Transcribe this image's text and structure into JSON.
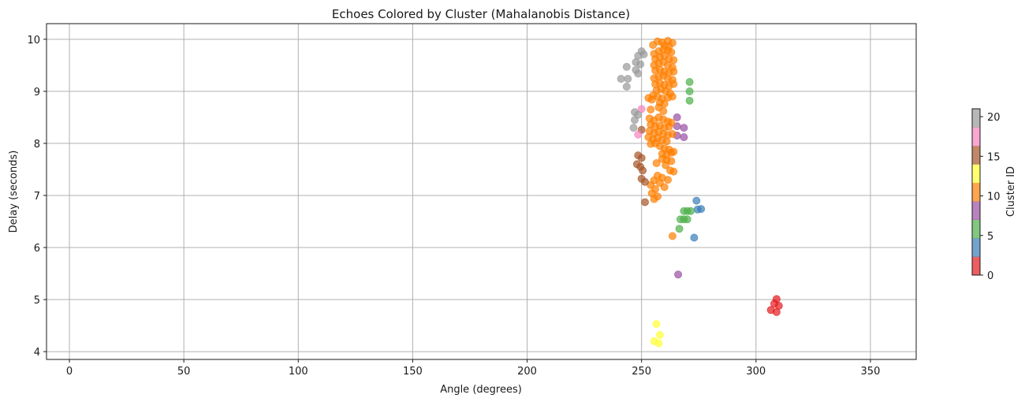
{
  "chart_data": {
    "type": "scatter",
    "title": "Echoes Colored by Cluster (Mahalanobis Distance)",
    "xlabel": "Angle (degrees)",
    "ylabel": "Delay (seconds)",
    "xlim": [
      -10,
      370
    ],
    "ylim": [
      3.85,
      10.3
    ],
    "xticks": [
      0,
      50,
      100,
      150,
      200,
      250,
      300,
      350
    ],
    "yticks": [
      4,
      5,
      6,
      7,
      8,
      9,
      10
    ],
    "grid": true,
    "marker_alpha": 0.7,
    "colorbar": {
      "label": "Cluster ID",
      "min": 0,
      "max": 21,
      "ticks": [
        0,
        5,
        10,
        15,
        20
      ],
      "colormap": "Set1",
      "colors": [
        "#e41a1c",
        "#377eb8",
        "#4daf4a",
        "#984ea3",
        "#ff7f00",
        "#ffff33",
        "#a65628",
        "#f781bf",
        "#999999"
      ]
    },
    "series": [
      {
        "cluster": 0,
        "color": "#e41a1c",
        "points": [
          [
            309,
            5.01
          ],
          [
            308,
            4.92
          ],
          [
            310,
            4.88
          ],
          [
            306.5,
            4.8
          ],
          [
            309,
            4.76
          ]
        ]
      },
      {
        "cluster": 3,
        "color": "#377eb8",
        "points": [
          [
            274,
            6.9
          ],
          [
            274.5,
            6.73
          ],
          [
            276,
            6.74
          ],
          [
            273,
            6.19
          ]
        ]
      },
      {
        "cluster": 5,
        "color": "#4daf4a",
        "points": [
          [
            271,
            9.18
          ],
          [
            271,
            9.0
          ],
          [
            271,
            8.82
          ],
          [
            268.5,
            6.7
          ],
          [
            270,
            6.7
          ],
          [
            271.5,
            6.7
          ],
          [
            267,
            6.54
          ],
          [
            268.5,
            6.54
          ],
          [
            270,
            6.54
          ],
          [
            266.5,
            6.36
          ]
        ]
      },
      {
        "cluster": 8,
        "color": "#984ea3",
        "points": [
          [
            265.5,
            8.5
          ],
          [
            268.5,
            8.3
          ],
          [
            265.5,
            8.33
          ],
          [
            265.5,
            8.15
          ],
          [
            268.5,
            8.12
          ],
          [
            266,
            5.48
          ]
        ]
      },
      {
        "cluster": 11,
        "color": "#ff7f00",
        "points": [
          [
            257,
            9.96
          ],
          [
            259,
            9.94
          ],
          [
            261.5,
            9.97
          ],
          [
            263.5,
            9.93
          ],
          [
            255,
            9.89
          ],
          [
            260,
            9.88
          ],
          [
            262,
            9.86
          ],
          [
            255.5,
            9.72
          ],
          [
            257.5,
            9.77
          ],
          [
            259.5,
            9.8
          ],
          [
            261.5,
            9.78
          ],
          [
            263,
            9.75
          ],
          [
            256,
            9.62
          ],
          [
            258,
            9.66
          ],
          [
            260,
            9.68
          ],
          [
            262,
            9.62
          ],
          [
            264,
            9.6
          ],
          [
            255.5,
            9.5
          ],
          [
            257.5,
            9.54
          ],
          [
            259.5,
            9.56
          ],
          [
            261.5,
            9.5
          ],
          [
            263.5,
            9.46
          ],
          [
            256,
            9.4
          ],
          [
            258,
            9.42
          ],
          [
            260,
            9.38
          ],
          [
            262,
            9.36
          ],
          [
            264,
            9.38
          ],
          [
            255.5,
            9.25
          ],
          [
            257.5,
            9.28
          ],
          [
            259.5,
            9.3
          ],
          [
            261.5,
            9.24
          ],
          [
            263.5,
            9.22
          ],
          [
            256,
            9.14
          ],
          [
            258,
            9.16
          ],
          [
            260,
            9.12
          ],
          [
            262,
            9.1
          ],
          [
            264,
            9.14
          ],
          [
            256.5,
            9.02
          ],
          [
            258.5,
            9.04
          ],
          [
            260.5,
            9.0
          ],
          [
            262.5,
            8.96
          ],
          [
            255,
            8.92
          ],
          [
            257,
            8.9
          ],
          [
            259,
            8.86
          ],
          [
            261.5,
            8.88
          ],
          [
            263.5,
            8.9
          ],
          [
            253,
            8.87
          ],
          [
            254.5,
            8.84
          ],
          [
            258,
            8.78
          ],
          [
            260,
            8.76
          ],
          [
            254,
            8.65
          ],
          [
            257.5,
            8.69
          ],
          [
            259.5,
            8.62
          ],
          [
            253.5,
            8.48
          ],
          [
            255.5,
            8.44
          ],
          [
            257.5,
            8.5
          ],
          [
            259.5,
            8.46
          ],
          [
            261.5,
            8.42
          ],
          [
            263,
            8.4
          ],
          [
            254,
            8.36
          ],
          [
            256,
            8.32
          ],
          [
            258,
            8.34
          ],
          [
            260,
            8.3
          ],
          [
            262,
            8.32
          ],
          [
            253.5,
            8.24
          ],
          [
            255.5,
            8.2
          ],
          [
            257.5,
            8.22
          ],
          [
            259.5,
            8.18
          ],
          [
            261.5,
            8.16
          ],
          [
            263.5,
            8.18
          ],
          [
            253,
            8.12
          ],
          [
            255,
            8.08
          ],
          [
            257,
            8.1
          ],
          [
            259,
            8.06
          ],
          [
            261,
            8.04
          ],
          [
            254,
            7.99
          ],
          [
            256,
            8.0
          ],
          [
            258,
            7.95
          ],
          [
            260,
            7.9
          ],
          [
            262,
            7.88
          ],
          [
            264,
            7.84
          ],
          [
            259,
            7.8
          ],
          [
            261,
            7.78
          ],
          [
            263,
            7.82
          ],
          [
            259,
            7.7
          ],
          [
            261,
            7.68
          ],
          [
            263,
            7.66
          ],
          [
            256.5,
            7.62
          ],
          [
            260.5,
            7.58
          ],
          [
            262.5,
            7.48
          ],
          [
            264,
            7.46
          ],
          [
            257,
            7.38
          ],
          [
            259,
            7.34
          ],
          [
            255.5,
            7.29
          ],
          [
            261.5,
            7.3
          ],
          [
            254,
            7.2
          ],
          [
            258,
            7.24
          ],
          [
            260,
            7.16
          ],
          [
            256,
            7.12
          ],
          [
            254.5,
            7.04
          ],
          [
            257,
            6.98
          ],
          [
            255.5,
            6.93
          ],
          [
            263.5,
            6.22
          ]
        ]
      },
      {
        "cluster": 13,
        "color": "#ffff33",
        "points": [
          [
            256.5,
            4.53
          ],
          [
            258,
            4.32
          ],
          [
            255.5,
            4.2
          ],
          [
            257.5,
            4.16
          ]
        ]
      },
      {
        "cluster": 16,
        "color": "#a65628",
        "points": [
          [
            250,
            8.26
          ],
          [
            248.5,
            7.77
          ],
          [
            250,
            7.72
          ],
          [
            248,
            7.6
          ],
          [
            249.5,
            7.55
          ],
          [
            250.5,
            7.48
          ],
          [
            250,
            7.32
          ],
          [
            251.5,
            7.26
          ],
          [
            251.5,
            6.87
          ]
        ]
      },
      {
        "cluster": 17,
        "color": "#f781bf",
        "points": [
          [
            250,
            8.66
          ],
          [
            248.5,
            8.17
          ]
        ]
      },
      {
        "cluster": 20,
        "color": "#999999",
        "points": [
          [
            250,
            9.77
          ],
          [
            251,
            9.71
          ],
          [
            248.5,
            9.68
          ],
          [
            247.5,
            9.56
          ],
          [
            249.5,
            9.52
          ],
          [
            243.5,
            9.47
          ],
          [
            247.5,
            9.41
          ],
          [
            248.5,
            9.34
          ],
          [
            241,
            9.24
          ],
          [
            244,
            9.24
          ],
          [
            243.5,
            9.09
          ],
          [
            247,
            8.6
          ],
          [
            248.5,
            8.55
          ],
          [
            247,
            8.45
          ],
          [
            246.5,
            8.3
          ]
        ]
      }
    ]
  }
}
